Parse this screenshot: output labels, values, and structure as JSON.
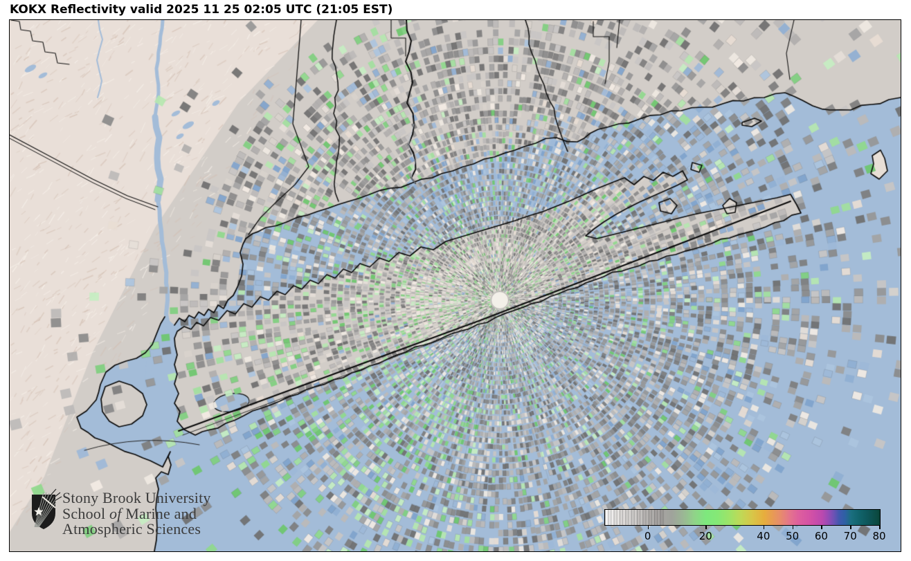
{
  "title": "KOKX Reflectivity valid 2025 11 25 02:05 UTC (21:05 EST)",
  "logo": {
    "line1": "Stony Brook University",
    "line2_pre": "School ",
    "line2_italic": "of",
    "line2_post": " Marine and",
    "line3": "Atmospheric Sciences"
  },
  "colorbar": {
    "tick_values": [
      0,
      20,
      40,
      50,
      60,
      70,
      80
    ],
    "value_range": [
      -15,
      80
    ],
    "striped_until_value": 5,
    "gradient_stops": [
      [
        -15,
        "#fefefe"
      ],
      [
        -10,
        "#e9e6e4"
      ],
      [
        -5,
        "#d6d3d1"
      ],
      [
        0,
        "#bab7b5"
      ],
      [
        4,
        "#a9a6a4"
      ],
      [
        8,
        "#a0a39c"
      ],
      [
        12,
        "#9bb795"
      ],
      [
        16,
        "#90d489"
      ],
      [
        20,
        "#7ee97e"
      ],
      [
        24,
        "#86e876"
      ],
      [
        28,
        "#9fe468"
      ],
      [
        32,
        "#c0d957"
      ],
      [
        36,
        "#d9c648"
      ],
      [
        40,
        "#e7ae3d"
      ],
      [
        43,
        "#e89b55"
      ],
      [
        46,
        "#e78a70"
      ],
      [
        49,
        "#e4738e"
      ],
      [
        52,
        "#de5f9e"
      ],
      [
        56,
        "#d452a6"
      ],
      [
        60,
        "#bc49af"
      ],
      [
        62,
        "#9a4bb5"
      ],
      [
        64,
        "#6f52b5"
      ],
      [
        66,
        "#4059ae"
      ],
      [
        68,
        "#2e61a4"
      ],
      [
        70,
        "#1b6f80"
      ],
      [
        73,
        "#11636b"
      ],
      [
        76,
        "#0e5659"
      ],
      [
        79,
        "#0c4b43"
      ],
      [
        80,
        "#0a4437"
      ]
    ]
  },
  "colors": {
    "water": "#a3bcd8",
    "land": "#d2cdc8",
    "terrain": "#e9dfd8",
    "terrain_shadow": "#d3bfb2",
    "terrain_highlight": "#f7f1ea",
    "coastline": "#0a0a0a",
    "radar_dot": "#f3f0e9",
    "title_text": "#000000",
    "logo_text": "#3b3b3b",
    "echo_gray": [
      "#6f6f6f",
      "#7d7d7d",
      "#8a8a8a",
      "#969696",
      "#a3a3a3",
      "#b0aeac",
      "#bcbab8",
      "#c8c6c4"
    ],
    "echo_cream": [
      "#d8d2cc",
      "#e5ded8",
      "#efe9e2",
      "#f3ece4",
      "#e8ddd4"
    ],
    "echo_green": [
      "#6cc76c",
      "#7fcf7f",
      "#8fd98c",
      "#a2e09e",
      "#b5e7b0",
      "#c6eec2"
    ],
    "echo_blue": [
      "#7fa3cc",
      "#8fafd2",
      "#9db9d8",
      "#abc4de"
    ]
  },
  "chart_data": {
    "type": "heatmap",
    "title": "KOKX Reflectivity valid 2025 11 25 02:05 UTC (21:05 EST)",
    "legend_ticks": [
      0,
      20,
      40,
      50,
      60,
      70,
      80
    ],
    "legend_range": [
      -15,
      80
    ],
    "legend_position": "bottom-right"
  }
}
